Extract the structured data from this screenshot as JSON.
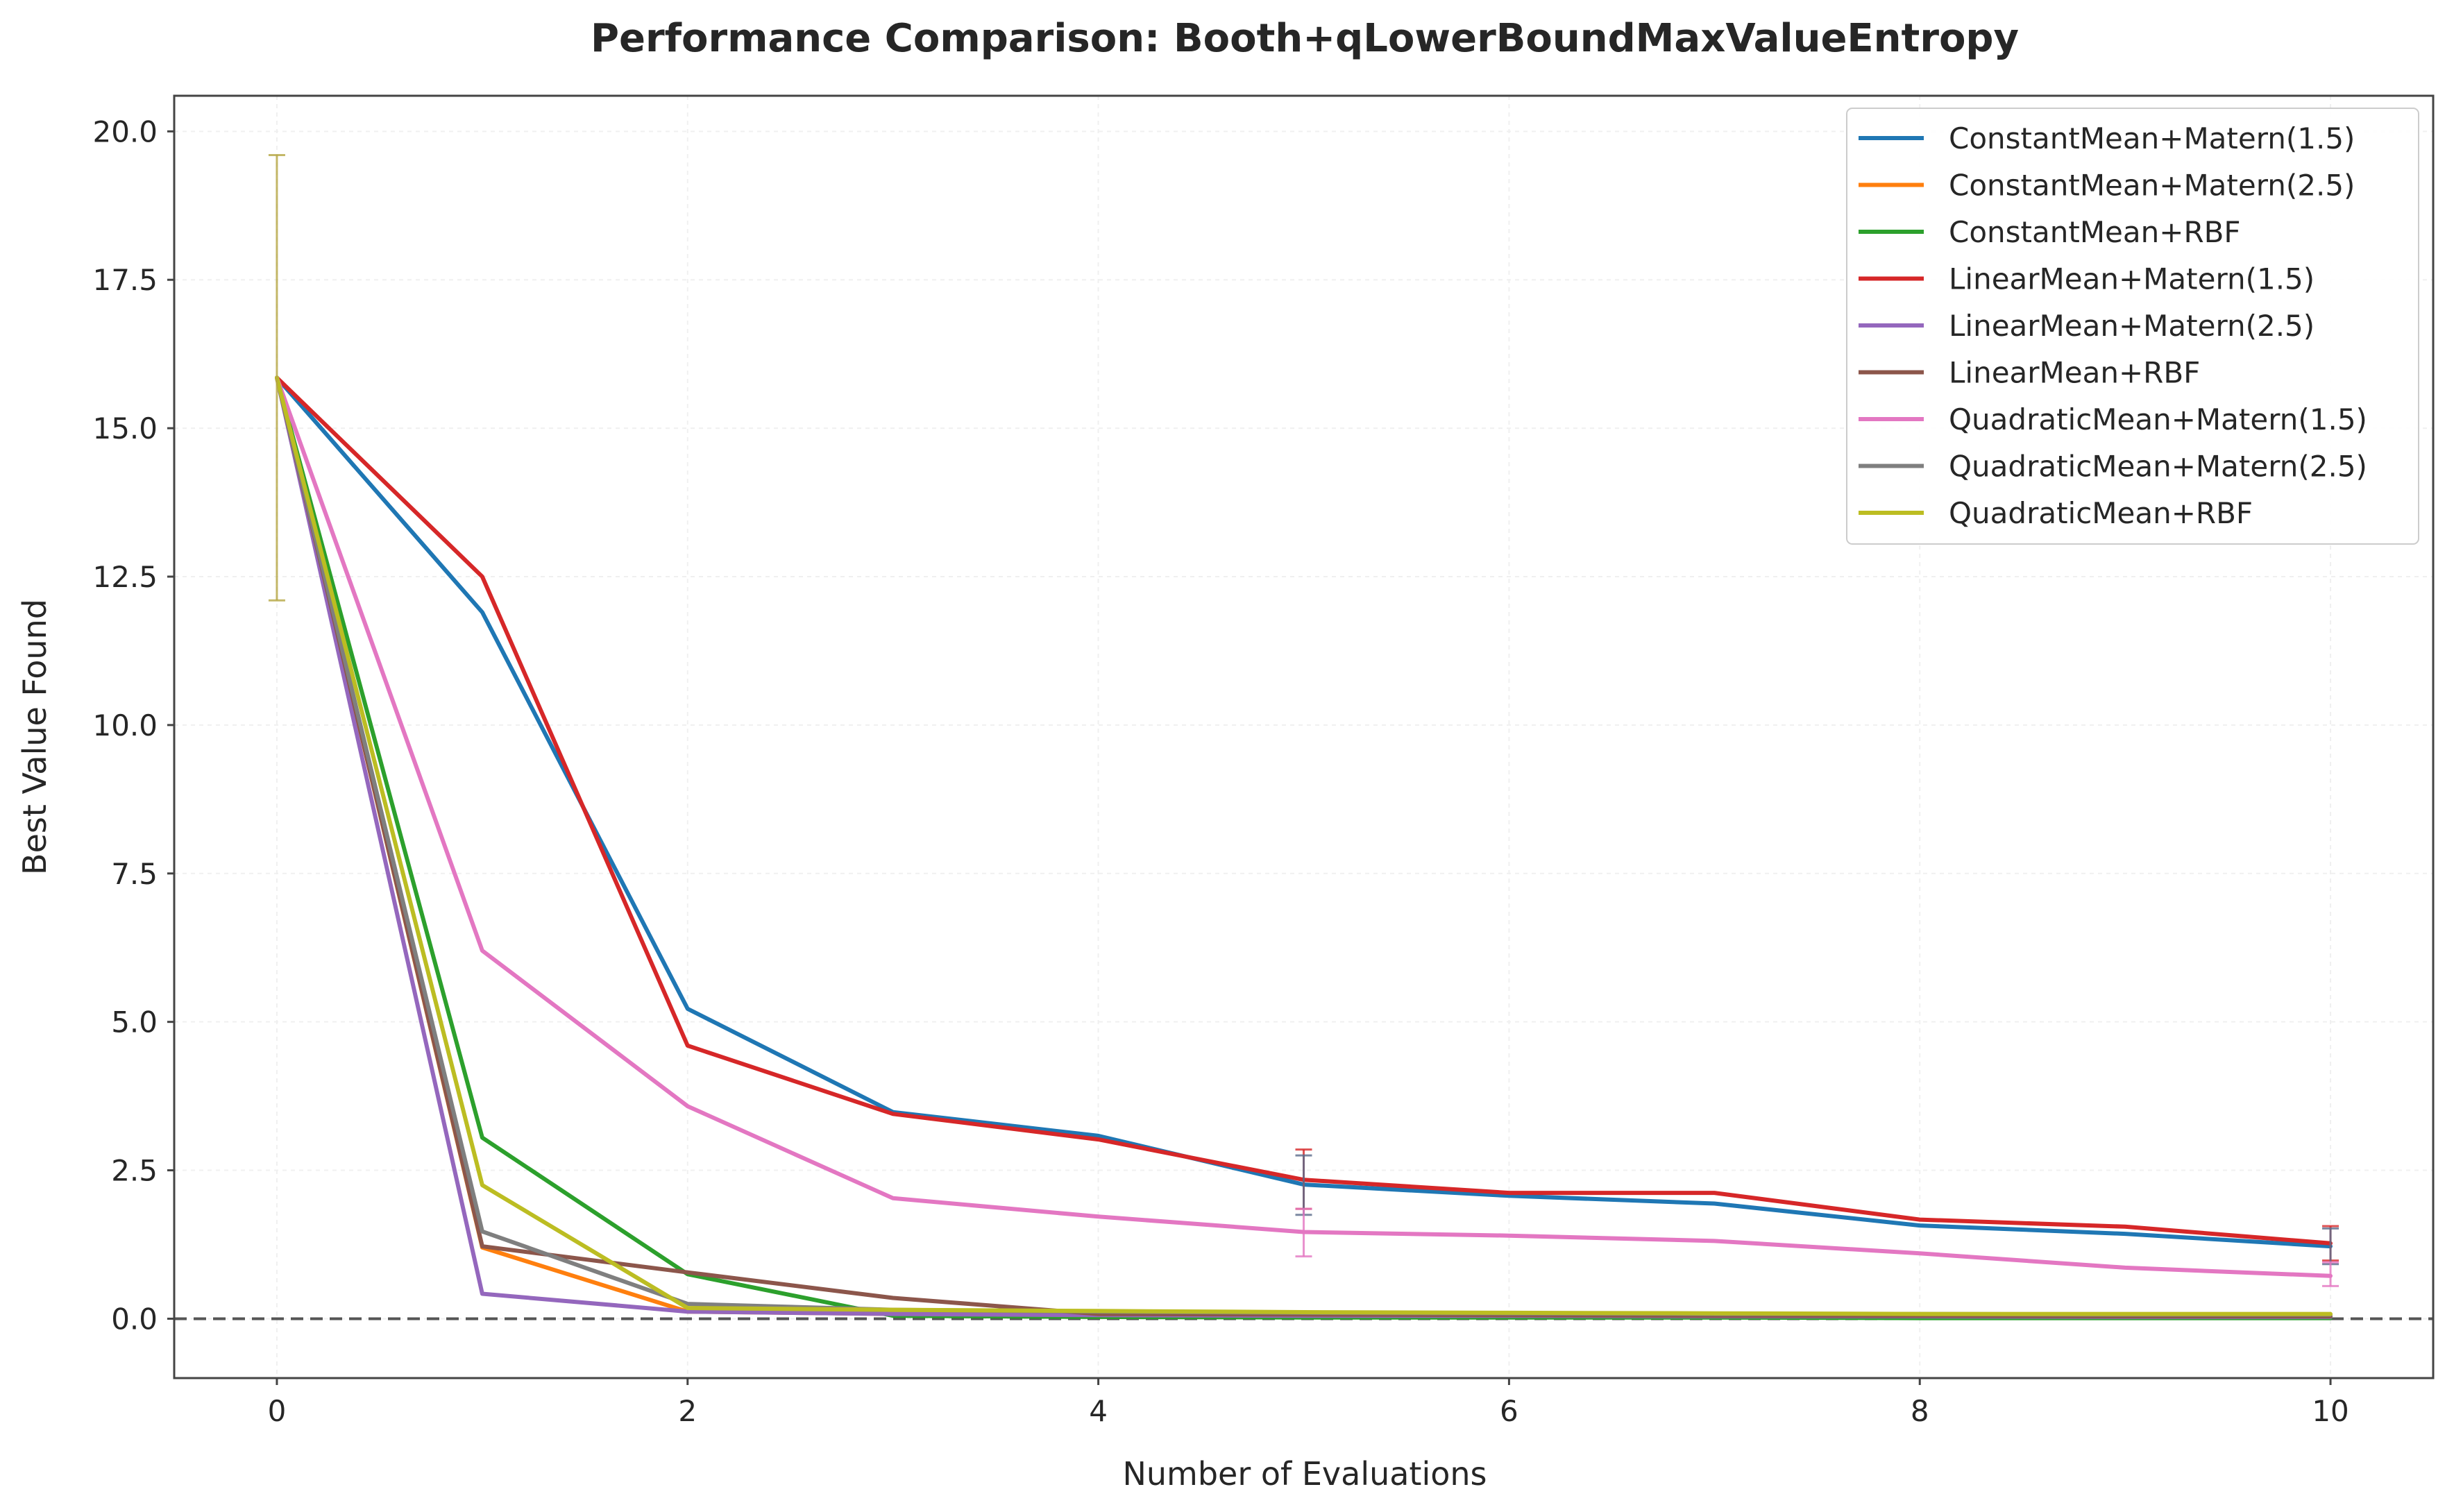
{
  "chart_data": {
    "type": "line",
    "title": "Performance Comparison: Booth+qLowerBoundMaxValueEntropy",
    "xlabel": "Number of Evaluations",
    "ylabel": "Best Value Found",
    "xlim": [
      -0.5,
      10.5
    ],
    "ylim": [
      -1.0,
      20.6
    ],
    "xticks": [
      0,
      2,
      4,
      6,
      8,
      10
    ],
    "xtick_labels": [
      "0",
      "2",
      "4",
      "6",
      "8",
      "10"
    ],
    "yticks": [
      0.0,
      2.5,
      5.0,
      7.5,
      10.0,
      12.5,
      15.0,
      17.5,
      20.0
    ],
    "ytick_labels": [
      "0.0",
      "2.5",
      "5.0",
      "7.5",
      "10.0",
      "12.5",
      "15.0",
      "17.5",
      "20.0"
    ],
    "grid": true,
    "legend_position": "top-right",
    "reference_line": {
      "y": 0.0,
      "style": "dashed",
      "color": "#555555"
    },
    "x": [
      0,
      1,
      2,
      3,
      4,
      5,
      6,
      7,
      8,
      9,
      10
    ],
    "series": [
      {
        "name": "ConstantMean+Matern(1.5)",
        "color": "#1f77b4",
        "values": [
          15.85,
          11.9,
          5.22,
          3.48,
          3.08,
          2.26,
          2.07,
          1.94,
          1.57,
          1.43,
          1.22
        ]
      },
      {
        "name": "ConstantMean+Matern(2.5)",
        "color": "#ff7f0e",
        "values": [
          15.85,
          1.2,
          0.12,
          0.08,
          0.06,
          0.05,
          0.05,
          0.04,
          0.04,
          0.03,
          0.03
        ]
      },
      {
        "name": "ConstantMean+RBF",
        "color": "#2ca02c",
        "values": [
          15.85,
          3.05,
          0.75,
          0.05,
          0.03,
          0.02,
          0.02,
          0.02,
          0.01,
          0.01,
          0.01
        ]
      },
      {
        "name": "LinearMean+Matern(1.5)",
        "color": "#d62728",
        "values": [
          15.85,
          12.5,
          4.6,
          3.45,
          3.02,
          2.34,
          2.12,
          2.12,
          1.67,
          1.55,
          1.27
        ]
      },
      {
        "name": "LinearMean+Matern(2.5)",
        "color": "#9467bd",
        "values": [
          15.85,
          0.42,
          0.12,
          0.08,
          0.06,
          0.05,
          0.05,
          0.04,
          0.04,
          0.03,
          0.03
        ]
      },
      {
        "name": "LinearMean+RBF",
        "color": "#8c564b",
        "values": [
          15.85,
          1.22,
          0.78,
          0.35,
          0.08,
          0.07,
          0.06,
          0.05,
          0.05,
          0.04,
          0.04
        ]
      },
      {
        "name": "QuadraticMean+Matern(1.5)",
        "color": "#e377c2",
        "values": [
          15.85,
          6.2,
          3.58,
          2.03,
          1.72,
          1.46,
          1.4,
          1.31,
          1.1,
          0.86,
          0.72
        ]
      },
      {
        "name": "QuadraticMean+Matern(2.5)",
        "color": "#7f7f7f",
        "values": [
          15.85,
          1.47,
          0.25,
          0.15,
          0.12,
          0.1,
          0.09,
          0.08,
          0.08,
          0.07,
          0.07
        ]
      },
      {
        "name": "QuadraticMean+RBF",
        "color": "#bcbd22",
        "values": [
          15.85,
          2.25,
          0.18,
          0.15,
          0.13,
          0.11,
          0.1,
          0.09,
          0.08,
          0.08,
          0.08
        ]
      }
    ],
    "error_bars": [
      {
        "series": "QuadraticMean+RBF",
        "x": 0,
        "low": 12.1,
        "high": 19.6,
        "color": "#b5a642"
      },
      {
        "series": "LinearMean+Matern(1.5)",
        "x": 5,
        "low": 1.85,
        "high": 2.85,
        "color": "#d62728"
      },
      {
        "series": "ConstantMean+Matern(1.5)",
        "x": 5,
        "low": 1.75,
        "high": 2.75,
        "color": "#5a6a8a"
      },
      {
        "series": "QuadraticMean+Matern(1.5)",
        "x": 5,
        "low": 1.05,
        "high": 1.85,
        "color": "#e377c2"
      },
      {
        "series": "LinearMean+Matern(1.5)",
        "x": 10,
        "low": 0.98,
        "high": 1.56,
        "color": "#d62728"
      },
      {
        "series": "ConstantMean+Matern(1.5)",
        "x": 10,
        "low": 0.92,
        "high": 1.52,
        "color": "#5a6a8a"
      },
      {
        "series": "QuadraticMean+Matern(1.5)",
        "x": 10,
        "low": 0.55,
        "high": 0.95,
        "color": "#e377c2"
      }
    ]
  }
}
